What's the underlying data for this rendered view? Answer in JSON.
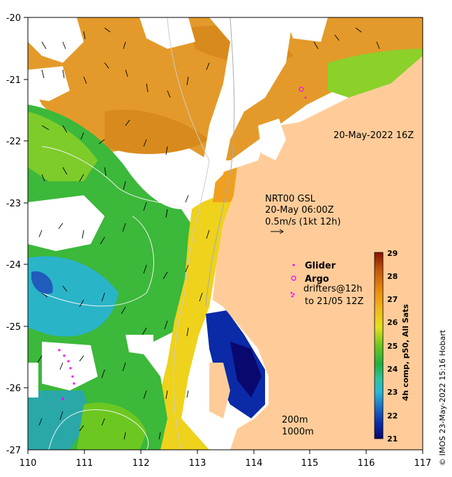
{
  "map": {
    "lon_range": [
      110,
      117
    ],
    "lat_range": [
      -27,
      -20
    ],
    "lon_ticks": [
      "110",
      "111",
      "112",
      "113",
      "114",
      "115",
      "116",
      "117"
    ],
    "lat_ticks": [
      "-20",
      "-21",
      "-22",
      "-23",
      "-24",
      "-25",
      "-26",
      "-27"
    ],
    "date_label": "20-May-2022 16Z",
    "current_info": {
      "line1": "NRT00 GSL",
      "line2": "20-May 06:00Z",
      "line3": "0.5m/s (1kt 12h)"
    },
    "legend": {
      "glider": "Glider",
      "argo": "Argo",
      "drifters_line1": "drifters@12h",
      "drifters_line2": "to 21/05 12Z",
      "glider_color": "#ff00ff",
      "argo_color": "#ff00ff",
      "drifter_color": "#ff00ff"
    },
    "isobaths": {
      "label1": "200m",
      "label2": "1000m"
    },
    "land_color": "#ffcc99",
    "colorbar": {
      "title": "4h comp, p50, All Sats",
      "min": 21,
      "max": 29,
      "ticks": [
        "21",
        "22",
        "23",
        "24",
        "25",
        "26",
        "27",
        "28",
        "29"
      ]
    },
    "credit": "© IMOS 23-May-2022 15:16 Hobart"
  }
}
